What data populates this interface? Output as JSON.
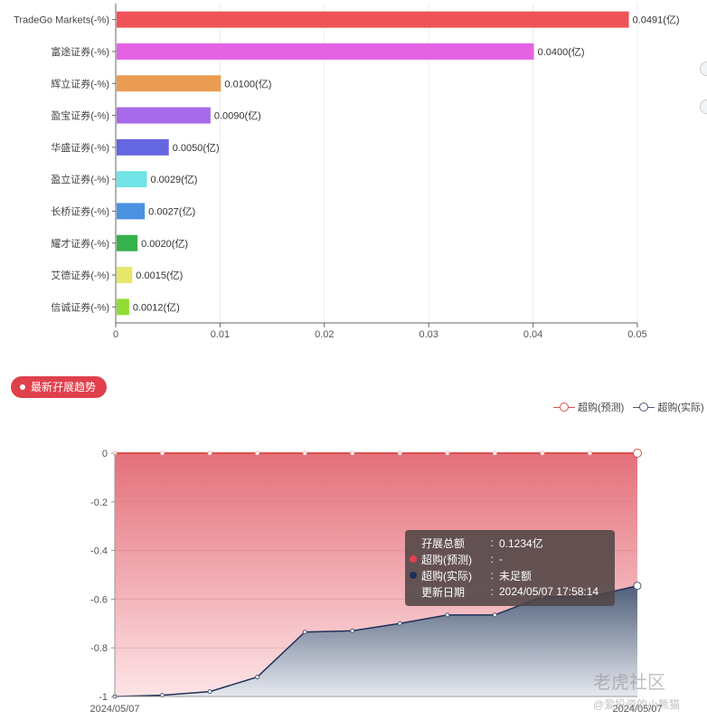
{
  "top_chart": {
    "chart_data": {
      "type": "bar",
      "orientation": "horizontal",
      "categories": [
        "TradeGo Markets(-%)",
        "富途证券(-%)",
        "辉立证券(-%)",
        "盈宝证券(-%)",
        "华盛证券(-%)",
        "盈立证券(-%)",
        "长桥证券(-%)",
        "耀才证券(-%)",
        "艾德证券(-%)",
        "信诚证券(-%)"
      ],
      "values": [
        0.0491,
        0.04,
        0.01,
        0.009,
        0.005,
        0.0029,
        0.0027,
        0.002,
        0.0015,
        0.0012
      ],
      "value_labels": [
        "0.0491(亿)",
        "0.0400(亿)",
        "0.0100(亿)",
        "0.0090(亿)",
        "0.0050(亿)",
        "0.0029(亿)",
        "0.0027(亿)",
        "0.0020(亿)",
        "0.0015(亿)",
        "0.0012(亿)"
      ],
      "bar_colors": [
        "#ee5358",
        "#e463e3",
        "#ea9d52",
        "#a76ae8",
        "#6566e1",
        "#72e3e6",
        "#4a91e2",
        "#36b24c",
        "#e6e76a",
        "#8fdd34"
      ],
      "xlim": [
        0,
        0.05
      ],
      "xticks": [
        "0",
        "0.01",
        "0.02",
        "0.03",
        "0.04",
        "0.05"
      ],
      "grid": true
    }
  },
  "section_tag": {
    "label": "最新孖展趋势"
  },
  "bottom_chart": {
    "legend": [
      {
        "name": "超购(预测)",
        "color": "#d9534f"
      },
      {
        "name": "超购(实际)",
        "color": "#4a5a72"
      }
    ],
    "chart_data": {
      "type": "area",
      "ylim": [
        -1,
        0
      ],
      "yticks": [
        "0",
        "-0.2",
        "-0.4",
        "-0.6",
        "-0.8",
        "-1"
      ],
      "x_labels": [
        "2024/05/07",
        "2024/05/07"
      ],
      "series": [
        {
          "name": "超购(预测)",
          "color": "#d9534f",
          "values": [
            0,
            0,
            0,
            0,
            0,
            0,
            0,
            0,
            0,
            0,
            0,
            0
          ]
        },
        {
          "name": "超购(实际)",
          "color": "#1f3157",
          "values": [
            -1.0,
            -0.995,
            -0.98,
            -0.92,
            -0.735,
            -0.73,
            -0.7,
            -0.665,
            -0.665,
            -0.59,
            -0.59,
            -0.545
          ]
        }
      ]
    },
    "tooltip": {
      "rows": [
        {
          "label": "孖展总额",
          "value": "0.1234亿",
          "dot": ""
        },
        {
          "label": "超购(预测)",
          "value": "-",
          "dot": "#e0404c"
        },
        {
          "label": "超购(实际)",
          "value": "未足额",
          "dot": "#1f3157"
        },
        {
          "label": "更新日期",
          "value": "2024/05/07 17:58:14",
          "dot": ""
        }
      ],
      "separator": ":"
    }
  },
  "watermark": {
    "text": "老虎社区",
    "sub": "@爱投资的小熊猫"
  }
}
